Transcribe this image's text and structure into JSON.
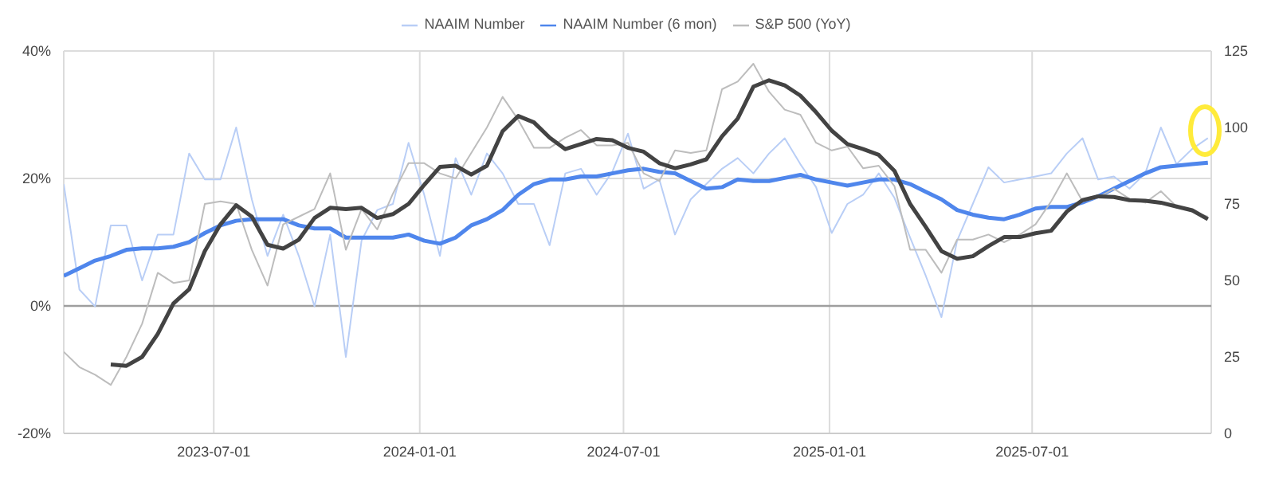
{
  "chart_data": {
    "type": "line",
    "x": [
      "2023-02-17",
      "2023-03-03",
      "2023-03-17",
      "2023-03-31",
      "2023-04-14",
      "2023-04-28",
      "2023-05-12",
      "2023-05-26",
      "2023-06-09",
      "2023-06-23",
      "2023-07-07",
      "2023-07-21",
      "2023-08-04",
      "2023-08-18",
      "2023-09-01",
      "2023-09-15",
      "2023-09-29",
      "2023-10-13",
      "2023-10-27",
      "2023-11-10",
      "2023-11-24",
      "2023-12-08",
      "2023-12-22",
      "2024-01-05",
      "2024-01-19",
      "2024-02-02",
      "2024-02-16",
      "2024-03-01",
      "2024-03-15",
      "2024-03-29",
      "2024-04-12",
      "2024-04-26",
      "2024-05-10",
      "2024-05-24",
      "2024-06-07",
      "2024-06-21",
      "2024-07-05",
      "2024-07-19",
      "2024-08-02",
      "2024-08-16",
      "2024-08-30",
      "2024-09-13",
      "2024-09-27",
      "2024-10-11",
      "2024-10-25",
      "2024-11-08",
      "2024-11-22",
      "2024-12-06",
      "2024-12-20",
      "2025-01-03",
      "2025-01-17",
      "2025-01-31",
      "2025-02-14",
      "2025-02-28",
      "2025-03-14",
      "2025-03-28",
      "2025-04-11",
      "2025-04-25",
      "2025-05-09",
      "2025-05-23",
      "2025-06-06",
      "2025-06-20",
      "2025-07-04",
      "2025-07-18",
      "2025-08-01",
      "2025-08-15",
      "2025-08-29",
      "2025-09-12",
      "2025-09-26",
      "2025-10-10",
      "2025-10-24",
      "2025-11-07",
      "2025-11-21",
      "2025-12-05"
    ],
    "series": [
      {
        "name": "NAAIM Number",
        "color": "#b9cef6",
        "axis": "y2",
        "values": [
          81.5,
          47,
          41.5,
          68,
          68,
          50,
          65,
          65,
          91.5,
          83,
          83,
          100,
          76.5,
          58,
          71.5,
          58,
          41.5,
          65,
          25,
          63,
          73,
          75,
          95,
          78,
          58,
          90,
          78,
          91.5,
          85,
          75,
          75,
          61.5,
          85,
          86.5,
          78,
          85.5,
          98,
          80,
          83,
          65,
          76.5,
          81.5,
          86.5,
          90,
          85,
          91.5,
          96.5,
          88,
          80.5,
          65.5,
          75,
          78,
          85,
          77,
          64,
          51.5,
          38,
          63,
          75,
          87,
          82,
          83,
          84,
          85,
          91.5,
          96.5,
          83,
          84,
          80,
          85,
          100,
          88,
          93,
          96.5
        ]
      },
      {
        "name": "NAAIM Number (6 mon)",
        "color": "#4f86ec",
        "axis": "y2",
        "values": [
          51.5,
          54,
          56.5,
          58,
          60,
          60.5,
          60.5,
          61,
          62.5,
          65.5,
          68,
          69.5,
          70,
          70,
          70,
          68,
          67,
          67,
          64,
          64,
          64,
          64,
          65,
          63,
          62,
          64,
          68,
          70,
          73,
          78,
          81.5,
          83,
          83,
          84,
          84,
          85,
          86,
          86.5,
          85.5,
          85,
          82.5,
          80,
          80.5,
          83,
          82.5,
          82.5,
          83.5,
          84.5,
          83,
          82,
          81,
          82,
          83,
          83,
          81.5,
          79,
          76.5,
          73,
          71.5,
          70.5,
          70,
          71.5,
          73.5,
          74,
          74,
          75.5,
          77.5,
          80,
          82.5,
          85,
          87,
          87.5,
          88,
          88.5
        ]
      },
      {
        "name": "S&P 500 (YoY)",
        "color": "#bdbdbd",
        "axis": "y",
        "values": [
          -7.2,
          -9.6,
          -10.8,
          -12.4,
          -8,
          -2.8,
          5.2,
          3.6,
          4,
          16,
          16.4,
          16,
          8.8,
          3.2,
          12.8,
          14,
          15.2,
          20.8,
          8.8,
          15.2,
          12,
          17.6,
          22.4,
          22.4,
          20.8,
          20,
          24,
          28,
          32.8,
          29.2,
          24.8,
          24.8,
          26.4,
          27.6,
          25.2,
          25.2,
          25.6,
          20.8,
          19.6,
          24.4,
          24,
          24.4,
          34,
          35.2,
          38,
          33.6,
          30.8,
          30,
          25.6,
          24.4,
          25,
          21.6,
          22,
          18.8,
          8.8,
          8.8,
          5.2,
          10.4,
          10.4,
          11.2,
          10,
          11.2,
          12.8,
          16.4,
          20.8,
          16.4,
          17,
          18.4,
          16.8,
          16.2,
          18,
          15.6,
          14.8,
          14
        ]
      },
      {
        "color": "#434343",
        "axis": "y",
        "values": [
          null,
          null,
          null,
          -9.2,
          -9.4,
          -8,
          -4.4,
          0.4,
          2.6,
          8.6,
          12.8,
          15.8,
          14,
          9.6,
          9,
          10.4,
          13.8,
          15.4,
          15.2,
          15.4,
          13.8,
          14.4,
          16,
          19,
          21.8,
          22,
          20.6,
          22,
          27.4,
          29.8,
          28.8,
          26.4,
          24.6,
          25.4,
          26.2,
          26,
          24.8,
          24.2,
          22.4,
          21.6,
          22.2,
          23,
          26.6,
          29.4,
          34.4,
          35.4,
          34.6,
          33,
          30.4,
          27.5,
          25.4,
          24.6,
          23.7,
          21.2,
          16,
          12.4,
          8.6,
          7.4,
          7.8,
          9.4,
          10.8,
          10.8,
          11.4,
          11.8,
          14.8,
          16.6,
          17.2,
          17.1,
          16.6,
          16.5,
          16.2,
          15.6,
          15,
          13.6
        ]
      }
    ],
    "xlim": [
      "2023-02-17",
      "2025-12-08"
    ],
    "xticks": [
      "2023-07-01",
      "2024-01-01",
      "2024-07-01",
      "2025-01-01",
      "2025-07-01"
    ],
    "ylim": [
      -20,
      40
    ],
    "yticks": [
      {
        "value": -20,
        "label": "-20%"
      },
      {
        "value": 0,
        "label": "0%"
      },
      {
        "value": 20,
        "label": "20%"
      },
      {
        "value": 40,
        "label": "40%"
      }
    ],
    "y2lim": [
      0,
      125
    ],
    "y2ticks": [
      0,
      25,
      50,
      75,
      100,
      125
    ],
    "ref_lines": [
      {
        "axis": "y",
        "value": 0,
        "color": "#9e9e9e"
      }
    ],
    "grid": true,
    "legend": "top"
  }
}
